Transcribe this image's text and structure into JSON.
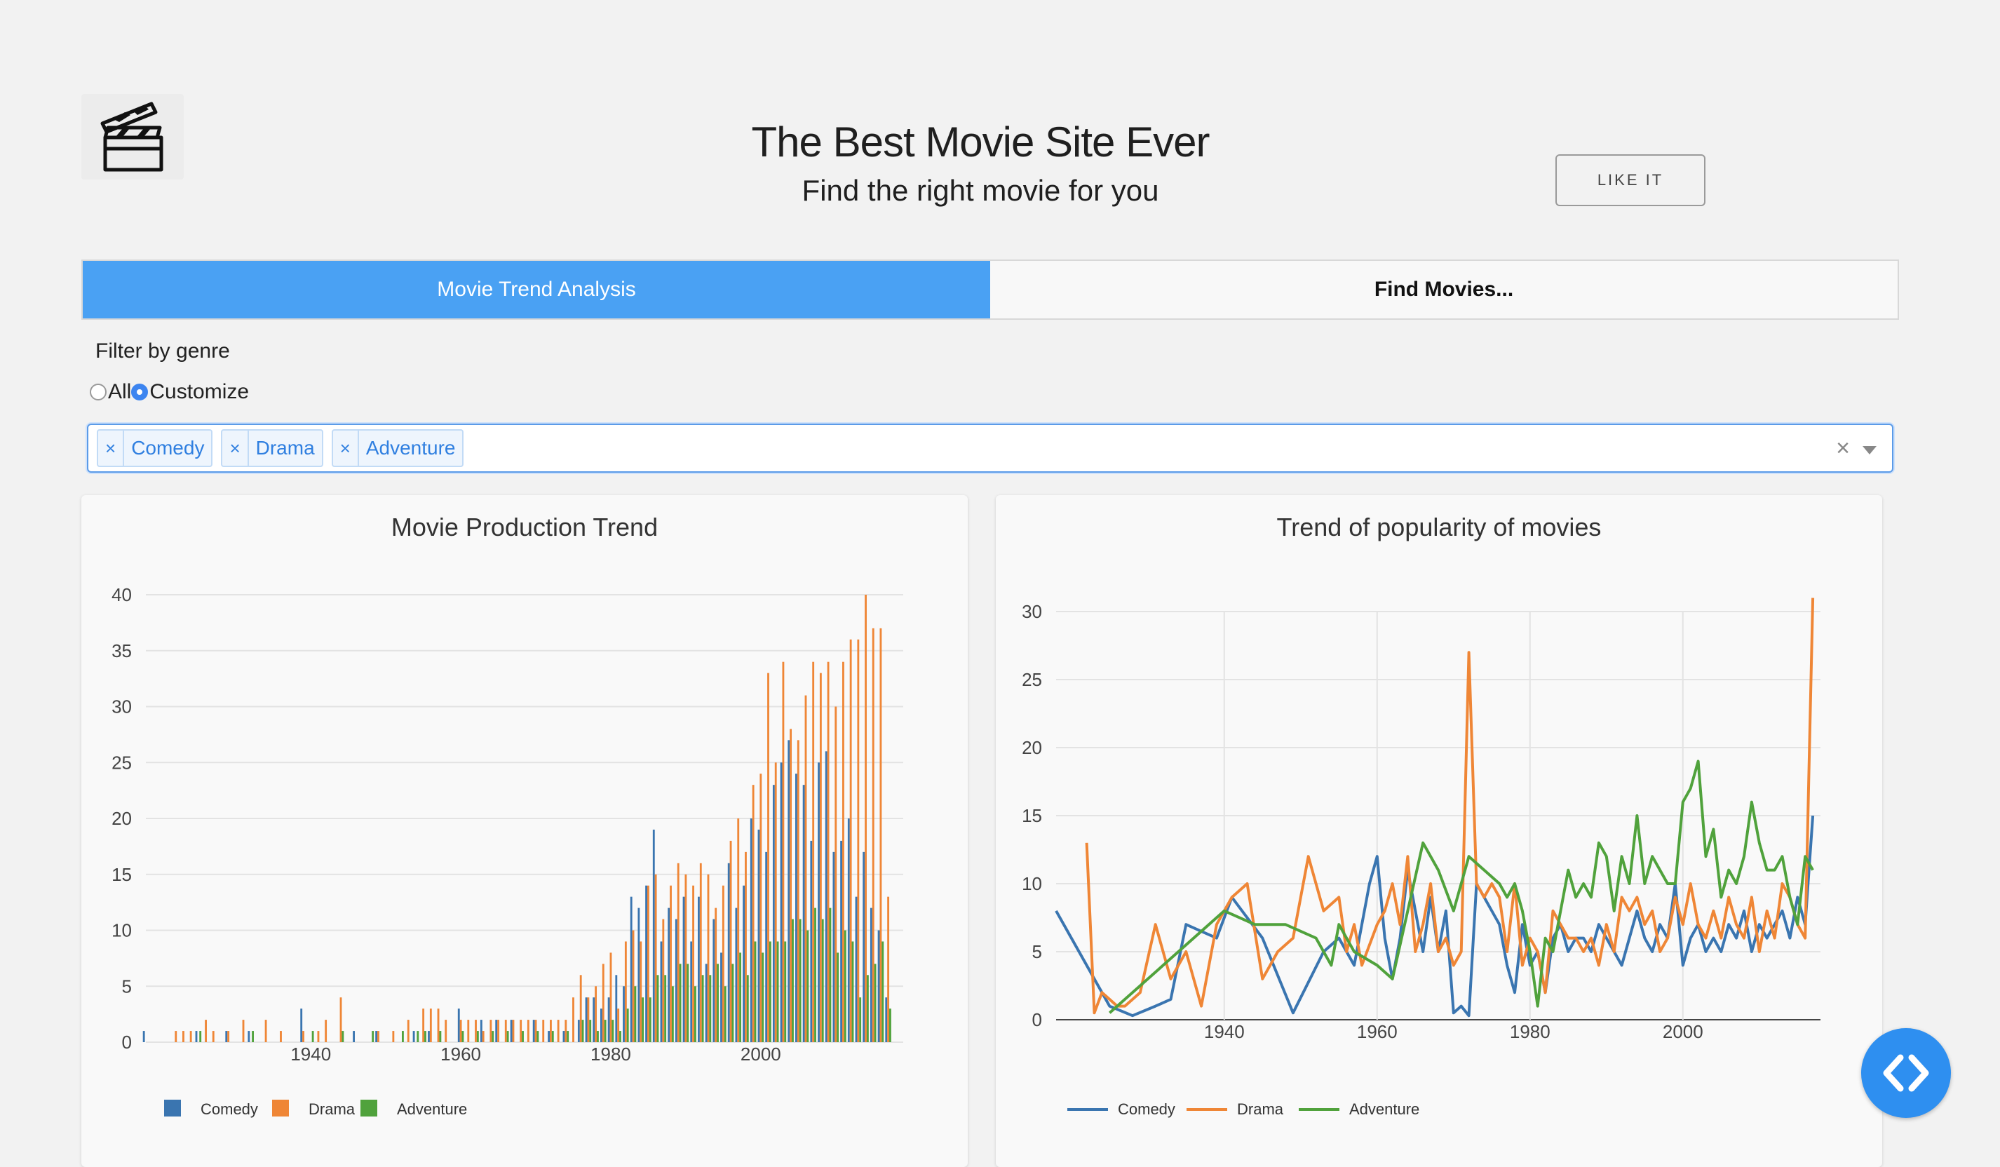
{
  "header": {
    "title": "The Best Movie Site Ever",
    "subtitle": "Find the right movie for you",
    "like_button": "LIKE IT",
    "logo_icon": "clapperboard-icon"
  },
  "tabs": [
    {
      "label": "Movie Trend Analysis",
      "active": true
    },
    {
      "label": "Find Movies...",
      "active": false
    }
  ],
  "filter": {
    "label": "Filter by genre",
    "options": [
      "All",
      "Customize"
    ],
    "selected": "Customize",
    "chips": [
      "Comedy",
      "Drama",
      "Adventure"
    ],
    "chip_remove_glyph": "×",
    "clear_glyph": "×"
  },
  "colors": {
    "comedy": "#3a75b0",
    "drama": "#ef8636",
    "adventure": "#50a23c",
    "accent": "#4aa1f3"
  },
  "chart_data": [
    {
      "type": "bar",
      "title": "Movie Production Trend",
      "xlim": [
        1918,
        2019
      ],
      "ylim": [
        0,
        40
      ],
      "x_ticks": [
        1940,
        1960,
        1980,
        2000
      ],
      "y_ticks": [
        0,
        5,
        10,
        15,
        20,
        25,
        30,
        35,
        40
      ],
      "legend": "bottom-left",
      "grid": true,
      "series": [
        {
          "name": "Comedy",
          "color": "#3a75b0",
          "x": [
            1918,
            1925,
            1929,
            1932,
            1939,
            1946,
            1949,
            1954,
            1956,
            1960,
            1963,
            1965,
            1967,
            1970,
            1972,
            1974,
            1976,
            1977,
            1978,
            1979,
            1980,
            1981,
            1982,
            1983,
            1984,
            1985,
            1986,
            1987,
            1988,
            1989,
            1990,
            1991,
            1992,
            1993,
            1994,
            1995,
            1996,
            1997,
            1998,
            1999,
            2000,
            2001,
            2002,
            2003,
            2004,
            2005,
            2006,
            2007,
            2008,
            2009,
            2010,
            2011,
            2012,
            2013,
            2014,
            2015,
            2016,
            2017
          ],
          "y": [
            1,
            1,
            1,
            1,
            3,
            1,
            1,
            1,
            1,
            3,
            2,
            2,
            2,
            2,
            1,
            1,
            2,
            4,
            4,
            3,
            4,
            6,
            5,
            13,
            12,
            14,
            19,
            9,
            12,
            11,
            13,
            9,
            13,
            7,
            11,
            8,
            16,
            12,
            14,
            20,
            19,
            17,
            23,
            25,
            27,
            24,
            23,
            18,
            25,
            26,
            17,
            18,
            20,
            13,
            17,
            12,
            10,
            4
          ]
        },
        {
          "name": "Drama",
          "color": "#ef8636",
          "x": [
            1922,
            1923,
            1924,
            1926,
            1927,
            1929,
            1931,
            1934,
            1936,
            1939,
            1941,
            1942,
            1944,
            1949,
            1951,
            1953,
            1955,
            1956,
            1957,
            1958,
            1960,
            1961,
            1962,
            1963,
            1964,
            1965,
            1966,
            1967,
            1968,
            1969,
            1970,
            1971,
            1972,
            1973,
            1974,
            1975,
            1976,
            1977,
            1978,
            1979,
            1980,
            1981,
            1982,
            1983,
            1984,
            1985,
            1986,
            1987,
            1988,
            1989,
            1990,
            1991,
            1992,
            1993,
            1994,
            1995,
            1996,
            1997,
            1998,
            1999,
            2000,
            2001,
            2002,
            2003,
            2004,
            2005,
            2006,
            2007,
            2008,
            2009,
            2010,
            2011,
            2012,
            2013,
            2014,
            2015,
            2016,
            2017
          ],
          "y": [
            1,
            1,
            1,
            2,
            1,
            1,
            2,
            2,
            1,
            1,
            1,
            2,
            4,
            1,
            1,
            2,
            3,
            3,
            3,
            2,
            2,
            2,
            2,
            1,
            2,
            2,
            2,
            2,
            2,
            2,
            2,
            2,
            2,
            2,
            2,
            4,
            6,
            4,
            5,
            7,
            8,
            3,
            9,
            10,
            9,
            14,
            15,
            11,
            14,
            16,
            15,
            14,
            16,
            15,
            12,
            14,
            18,
            20,
            17,
            23,
            24,
            33,
            25,
            34,
            28,
            27,
            31,
            34,
            33,
            34,
            30,
            34,
            36,
            36,
            40,
            37,
            37,
            13
          ]
        },
        {
          "name": "Adventure",
          "color": "#50a23c",
          "x": [
            1925,
            1932,
            1940,
            1944,
            1948,
            1952,
            1954,
            1955,
            1957,
            1960,
            1962,
            1964,
            1966,
            1968,
            1970,
            1972,
            1974,
            1976,
            1977,
            1978,
            1979,
            1980,
            1981,
            1982,
            1983,
            1984,
            1985,
            1986,
            1987,
            1988,
            1989,
            1990,
            1991,
            1992,
            1993,
            1994,
            1995,
            1996,
            1997,
            1998,
            1999,
            2000,
            2001,
            2002,
            2003,
            2004,
            2005,
            2006,
            2007,
            2008,
            2009,
            2010,
            2011,
            2012,
            2013,
            2014,
            2015,
            2016,
            2017
          ],
          "y": [
            1,
            1,
            1,
            1,
            1,
            1,
            1,
            1,
            1,
            1,
            1,
            1,
            1,
            1,
            1,
            1,
            1,
            2,
            2,
            1,
            2,
            2,
            1,
            3,
            5,
            4,
            4,
            6,
            6,
            5,
            7,
            7,
            5,
            6,
            6,
            7,
            5,
            7,
            8,
            6,
            9,
            8,
            9,
            9,
            9,
            11,
            11,
            10,
            12,
            11,
            12,
            8,
            10,
            9,
            4,
            6,
            7,
            9,
            3
          ]
        }
      ]
    },
    {
      "type": "line",
      "title": "Trend of popularity of movies",
      "xlim": [
        1918,
        2018
      ],
      "ylim": [
        0,
        30
      ],
      "x_ticks": [
        1940,
        1960,
        1980,
        2000
      ],
      "y_ticks": [
        0,
        5,
        10,
        15,
        20,
        25,
        30
      ],
      "legend": "bottom-left",
      "grid": true,
      "series": [
        {
          "name": "Comedy",
          "color": "#3a75b0",
          "x": [
            1918,
            1921,
            1925,
            1928,
            1931,
            1933,
            1935,
            1937,
            1939,
            1941,
            1945,
            1949,
            1953,
            1955,
            1957,
            1959,
            1960,
            1961,
            1962,
            1963,
            1964,
            1965,
            1966,
            1967,
            1968,
            1969,
            1970,
            1971,
            1972,
            1973,
            1974,
            1975,
            1976,
            1977,
            1978,
            1979,
            1980,
            1981,
            1982,
            1983,
            1984,
            1985,
            1986,
            1987,
            1988,
            1989,
            1990,
            1991,
            1992,
            1993,
            1994,
            1995,
            1996,
            1997,
            1998,
            1999,
            2000,
            2001,
            2002,
            2003,
            2004,
            2005,
            2006,
            2007,
            2008,
            2009,
            2010,
            2011,
            2012,
            2013,
            2014,
            2015,
            2016,
            2017
          ],
          "y": [
            8,
            5,
            1,
            0.3,
            1,
            1.5,
            7,
            6.5,
            6,
            9,
            6,
            0.5,
            5,
            6,
            4,
            10,
            12,
            6,
            3,
            6,
            11,
            8,
            5,
            9,
            5,
            8,
            0.5,
            1,
            0.3,
            10,
            9,
            8,
            7,
            4,
            2,
            7,
            4,
            5,
            2,
            6,
            7,
            5,
            6,
            6,
            5,
            7,
            6,
            5,
            4,
            6,
            8,
            6,
            5,
            7,
            6,
            10,
            4,
            6,
            7,
            5,
            6,
            5,
            7,
            6,
            8,
            5,
            7,
            6,
            7,
            8,
            6,
            9,
            7,
            15
          ]
        },
        {
          "name": "Drama",
          "color": "#ef8636",
          "x": [
            1922,
            1923,
            1924,
            1926,
            1927,
            1929,
            1931,
            1933,
            1935,
            1937,
            1939,
            1941,
            1943,
            1945,
            1947,
            1949,
            1951,
            1953,
            1955,
            1956,
            1957,
            1958,
            1960,
            1961,
            1962,
            1963,
            1964,
            1965,
            1966,
            1967,
            1968,
            1969,
            1970,
            1971,
            1972,
            1973,
            1974,
            1975,
            1976,
            1977,
            1978,
            1979,
            1980,
            1981,
            1982,
            1983,
            1984,
            1985,
            1986,
            1987,
            1988,
            1989,
            1990,
            1991,
            1992,
            1993,
            1994,
            1995,
            1996,
            1997,
            1998,
            1999,
            2000,
            2001,
            2002,
            2003,
            2004,
            2005,
            2006,
            2007,
            2008,
            2009,
            2010,
            2011,
            2012,
            2013,
            2014,
            2015,
            2016,
            2017
          ],
          "y": [
            13,
            0.5,
            2,
            1,
            1,
            2,
            7,
            3,
            5,
            1,
            7,
            9,
            10,
            3,
            5,
            6,
            12,
            8,
            9,
            5,
            7,
            4,
            7,
            8,
            10,
            7,
            12,
            5,
            7,
            10,
            5,
            6,
            4,
            5,
            27,
            10,
            9,
            10,
            9,
            5,
            10,
            4,
            6,
            5,
            2,
            8,
            7,
            6,
            6,
            5,
            6,
            4,
            7,
            5,
            9,
            8,
            9,
            7,
            8,
            5,
            6,
            9,
            7,
            10,
            7,
            6,
            8,
            6,
            9,
            7,
            6,
            9,
            5,
            8,
            6,
            10,
            9,
            7,
            6,
            31
          ]
        },
        {
          "name": "Adventure",
          "color": "#50a23c",
          "x": [
            1925,
            1932,
            1940,
            1944,
            1948,
            1952,
            1954,
            1955,
            1957,
            1960,
            1962,
            1964,
            1966,
            1968,
            1970,
            1972,
            1974,
            1976,
            1977,
            1978,
            1979,
            1980,
            1981,
            1982,
            1983,
            1984,
            1985,
            1986,
            1987,
            1988,
            1989,
            1990,
            1991,
            1992,
            1993,
            1994,
            1995,
            1996,
            1997,
            1998,
            1999,
            2000,
            2001,
            2002,
            2003,
            2004,
            2005,
            2006,
            2007,
            2008,
            2009,
            2010,
            2011,
            2012,
            2013,
            2014,
            2015,
            2016,
            2017
          ],
          "y": [
            0.5,
            4,
            8,
            7,
            7,
            6,
            4,
            7,
            5,
            4,
            3,
            8,
            13,
            11,
            8,
            12,
            11,
            10,
            9,
            10,
            8,
            5,
            1,
            6,
            5,
            8,
            11,
            9,
            10,
            9,
            13,
            12,
            8,
            12,
            10,
            15,
            10,
            12,
            11,
            10,
            10,
            16,
            17,
            19,
            12,
            14,
            9,
            11,
            10,
            12,
            16,
            13,
            11,
            11,
            12,
            9,
            7,
            12,
            11
          ]
        }
      ]
    }
  ]
}
